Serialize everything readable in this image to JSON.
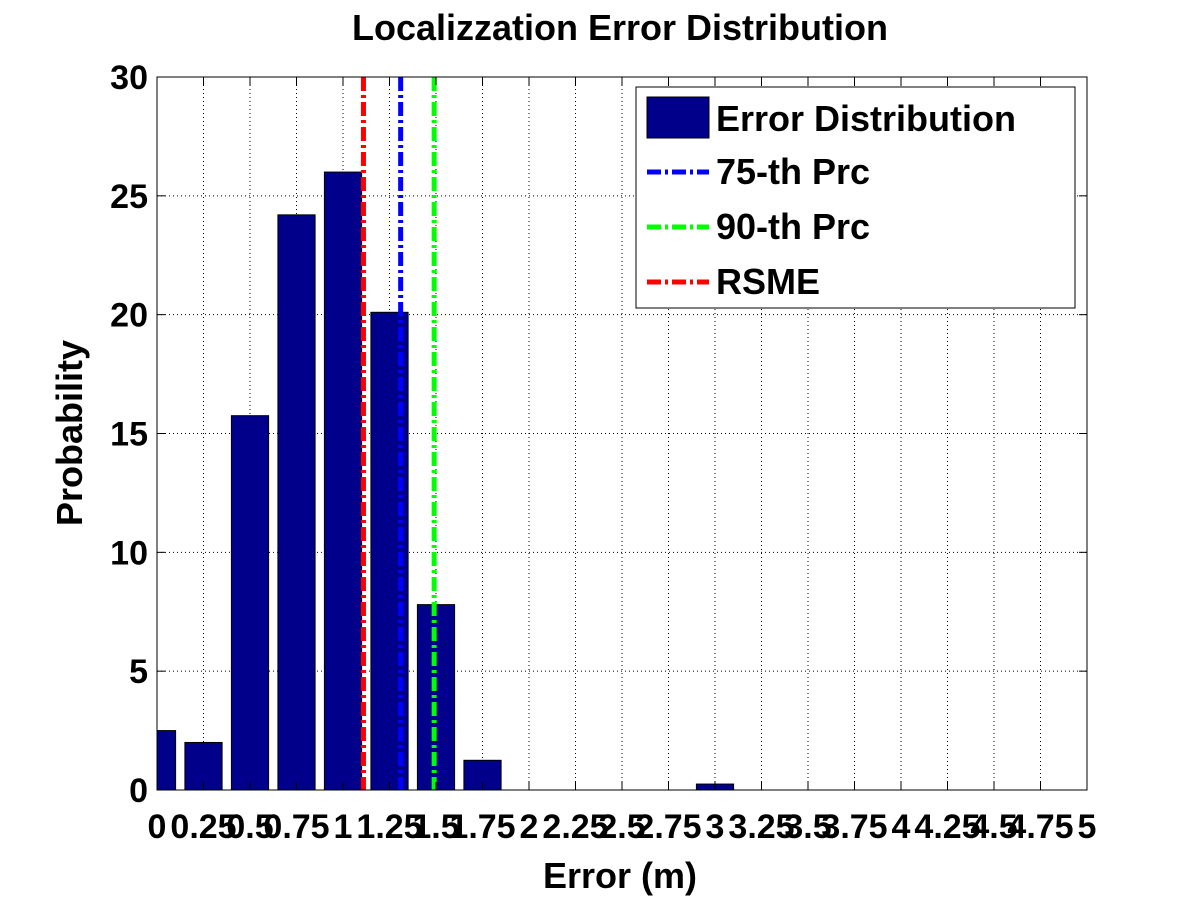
{
  "chart_data": {
    "type": "bar",
    "title": "Localizzation Error Distribution",
    "xlabel": "Error (m)",
    "ylabel": "Probability",
    "xlim": [
      0,
      5
    ],
    "ylim": [
      0,
      30
    ],
    "grid": true,
    "legend_position": "top-right",
    "x_ticks": [
      0,
      0.25,
      0.5,
      0.75,
      1,
      1.25,
      1.5,
      1.75,
      2,
      2.25,
      2.5,
      2.75,
      3,
      3.25,
      3.5,
      3.75,
      4,
      4.25,
      4.5,
      4.75,
      5
    ],
    "x_tick_labels": [
      "0",
      "0.25",
      "0.5",
      "0.75",
      "1",
      "1.25",
      "1.5",
      "1.75",
      "2",
      "2.25",
      "2.5",
      "2.75",
      "3",
      "3.25",
      "3.5",
      "3.75",
      "4",
      "4.25",
      "4.5",
      "4.75",
      "5"
    ],
    "y_ticks": [
      0,
      5,
      10,
      15,
      20,
      25,
      30
    ],
    "y_tick_labels": [
      "0",
      "5",
      "10",
      "15",
      "20",
      "25",
      "30"
    ],
    "series": [
      {
        "name": "Error Distribution",
        "color": "#00008b",
        "bin_width": 0.25,
        "bins": [
          {
            "center": 0.0,
            "value": 2.5
          },
          {
            "center": 0.25,
            "value": 2.0
          },
          {
            "center": 0.5,
            "value": 15.75
          },
          {
            "center": 0.75,
            "value": 24.2
          },
          {
            "center": 1.0,
            "value": 26.0
          },
          {
            "center": 1.25,
            "value": 20.1
          },
          {
            "center": 1.5,
            "value": 7.8
          },
          {
            "center": 1.75,
            "value": 1.25
          },
          {
            "center": 2.0,
            "value": 0
          },
          {
            "center": 2.25,
            "value": 0
          },
          {
            "center": 2.5,
            "value": 0
          },
          {
            "center": 2.75,
            "value": 0
          },
          {
            "center": 3.0,
            "value": 0.25
          },
          {
            "center": 3.25,
            "value": 0
          },
          {
            "center": 3.5,
            "value": 0
          },
          {
            "center": 3.75,
            "value": 0
          },
          {
            "center": 4.0,
            "value": 0
          },
          {
            "center": 4.25,
            "value": 0
          },
          {
            "center": 4.5,
            "value": 0
          },
          {
            "center": 4.75,
            "value": 0
          },
          {
            "center": 5.0,
            "value": 0
          }
        ]
      }
    ],
    "reference_lines": [
      {
        "name": "75-th Prc",
        "x": 1.31,
        "color": "#0000ff",
        "style": "dash-dot"
      },
      {
        "name": "90-th Prc",
        "x": 1.49,
        "color": "#00ff00",
        "style": "dash-dot"
      },
      {
        "name": "RSME",
        "x": 1.11,
        "color": "#ff0000",
        "style": "dash-dot"
      }
    ]
  }
}
